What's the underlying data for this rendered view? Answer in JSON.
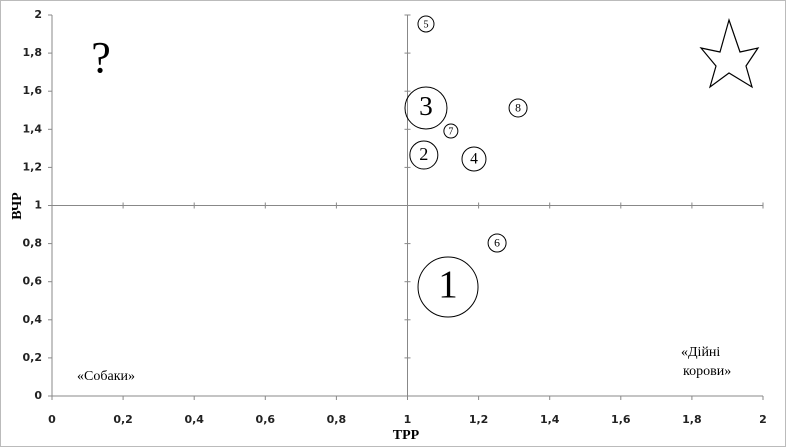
{
  "chart_data": {
    "type": "bubble",
    "x_label": "ТРР",
    "y_label": "ВЧР",
    "xlim": [
      0,
      2
    ],
    "ylim": [
      0,
      2
    ],
    "xticks": [
      0,
      {
        "value": 0.2,
        "label": "0,2"
      },
      {
        "value": 0.4,
        "label": "0,4"
      },
      {
        "value": 0.6,
        "label": "0,6"
      },
      {
        "value": 0.8,
        "label": "0,8"
      },
      1,
      {
        "value": 1.2,
        "label": "1,2"
      },
      {
        "value": 1.4,
        "label": "1,4"
      },
      {
        "value": 1.6,
        "label": "1,6"
      },
      {
        "value": 1.8,
        "label": "1,8"
      },
      2
    ],
    "yticks": [
      0,
      {
        "value": 0.2,
        "label": "0,2"
      },
      {
        "value": 0.4,
        "label": "0,4"
      },
      {
        "value": 0.6,
        "label": "0,6"
      },
      {
        "value": 0.8,
        "label": "0,8"
      },
      1,
      {
        "value": 1.2,
        "label": "1,2"
      },
      {
        "value": 1.4,
        "label": "1,4"
      },
      {
        "value": 1.6,
        "label": "1,6"
      },
      {
        "value": 1.8,
        "label": "1,8"
      },
      2
    ],
    "divider": {
      "x": 1,
      "y": 1
    },
    "color": "#000000",
    "x": [
      1.114,
      1.046,
      1.052,
      1.187,
      1.052,
      1.252,
      1.122,
      1.311
    ],
    "values": [
      0.572,
      1.265,
      1.512,
      1.244,
      1.953,
      0.803,
      1.391,
      1.512
    ],
    "sizes": [
      30,
      14,
      21,
      12,
      8,
      9,
      7,
      9
    ],
    "labels": [
      "1",
      "2",
      "3",
      "4",
      "5",
      "6",
      "7",
      "8"
    ],
    "quadrant_labels": {
      "question": "?",
      "dogs": "«Собаки»",
      "cows": [
        "«Дійні",
        "корови»"
      ]
    }
  }
}
